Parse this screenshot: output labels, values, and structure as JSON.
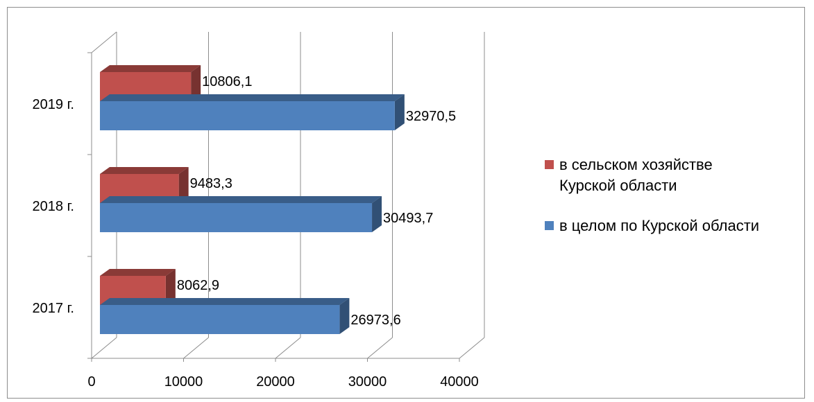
{
  "chart_data": {
    "type": "bar",
    "orientation": "horizontal",
    "three_d": true,
    "categories": [
      "2017 г.",
      "2018 г.",
      "2019 г."
    ],
    "series": [
      {
        "name": "в целом по Курской области",
        "color": "#4F81BD",
        "values": [
          26973.6,
          30493.7,
          32970.5
        ],
        "labels": [
          "26973,6",
          "30493,7",
          "32970,5"
        ]
      },
      {
        "name": "в сельском хозяйстве Курской области",
        "color": "#C0504D",
        "values": [
          8062.9,
          9483.3,
          10806.1
        ],
        "labels": [
          "8062,9",
          "9483,3",
          "10806,1"
        ]
      }
    ],
    "xlim": [
      0,
      40000
    ],
    "x_ticks": [
      "0",
      "10000",
      "20000",
      "30000",
      "40000"
    ],
    "grid": true,
    "legend_position": "right",
    "legend": [
      {
        "lines": [
          "в сельском хозяйстве",
          "Курской области"
        ],
        "color": "#C0504D"
      },
      {
        "lines": [
          "в целом по Курской области"
        ],
        "color": "#4F81BD"
      }
    ]
  }
}
